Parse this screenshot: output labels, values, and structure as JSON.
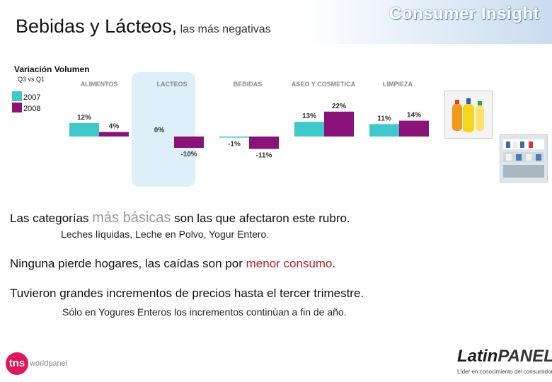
{
  "header": {
    "title": "Bebidas y Lácteos,",
    "subtitle": "las más negativas",
    "brand": "Consumer Insight"
  },
  "chart_data": {
    "type": "bar",
    "title": "Variación Volumen",
    "subtitle": "Q3 vs Q1",
    "categories": [
      "ALIMENTOS",
      "LACTEOS",
      "BEBIDAS",
      "ASEO Y COSMETICA",
      "LIMPIEZA"
    ],
    "series": [
      {
        "name": "2007",
        "color": "#3fc9cc",
        "values": [
          12,
          0,
          -1,
          13,
          11
        ],
        "labels": [
          "12%",
          "0%",
          "-1%",
          "13%",
          "11%"
        ]
      },
      {
        "name": "2008",
        "color": "#8a137a",
        "values": [
          4,
          -10,
          -11,
          22,
          14
        ],
        "labels": [
          "4%",
          "-10%",
          "-11%",
          "22%",
          "14%"
        ]
      }
    ],
    "highlight_category": "LACTEOS",
    "highlight_color": "#ddf0fa",
    "grid": false
  },
  "body": {
    "line1_a": "Las categorías",
    "line1_b": "más básicas",
    "line1_c": "son las que afectaron este rubro.",
    "line2": "Leches líquidas, Leche en Polvo, Yogur Entero.",
    "line3_a": "Ninguna pierde hogares, las caídas son por",
    "line3_b": "menor consumo",
    "line3_c": ".",
    "line4": "Tuvieron grandes incrementos de precios hasta el tercer trimestre.",
    "line5": "Sólo en Yogures Enteros los incrementos continúan a fin de año."
  },
  "footer": {
    "tns_mark": "tns",
    "tns_text": "worldpanel",
    "latin_a": "Latin",
    "latin_b": "PANEL",
    "latin_tagline": "Líder en conocimiento del consumidor"
  }
}
